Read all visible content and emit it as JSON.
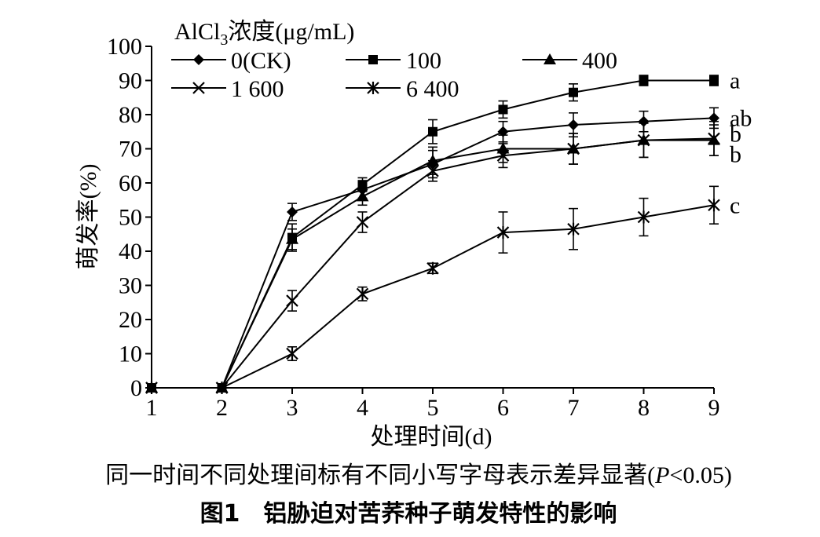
{
  "chart_data": {
    "type": "line",
    "title": "",
    "xlabel": "处理时间(d)",
    "ylabel": "萌发率(%)",
    "x": [
      1,
      2,
      3,
      4,
      5,
      6,
      7,
      8,
      9
    ],
    "xticks": [
      "1",
      "2",
      "3",
      "4",
      "5",
      "6",
      "7",
      "8",
      "9"
    ],
    "xlim": [
      1,
      9
    ],
    "yticks": [
      "0",
      "10",
      "20",
      "30",
      "40",
      "50",
      "60",
      "70",
      "80",
      "90",
      "100"
    ],
    "ylim": [
      0,
      100
    ],
    "grid": false,
    "legend_title": "AlCl3浓度(μg/mL)",
    "legend_title_main": "AlCl",
    "legend_title_sub": "3",
    "legend_title_rest": "浓度(μg/mL)",
    "legend_position": "top-left",
    "series": [
      {
        "name": "0(CK)",
        "marker": "diamond",
        "values": [
          0,
          0,
          51.5,
          58,
          65.5,
          75,
          77,
          78,
          79
        ],
        "errors": [
          0,
          0,
          2.5,
          2.5,
          4,
          3,
          3.5,
          3,
          3
        ],
        "label": "ab"
      },
      {
        "name": "100",
        "marker": "square",
        "values": [
          0,
          0,
          44,
          59.5,
          75,
          81.5,
          86.5,
          90,
          90
        ],
        "errors": [
          0,
          0,
          4,
          2,
          3.5,
          2.5,
          2.5,
          1.5,
          1.5
        ],
        "label": "a"
      },
      {
        "name": "400",
        "marker": "triangle",
        "values": [
          0,
          0,
          43.5,
          56,
          66.5,
          70,
          70,
          72.5,
          72.5
        ],
        "errors": [
          0,
          0,
          3,
          2.5,
          4,
          4,
          4.5,
          5,
          4.5
        ],
        "label": "b"
      },
      {
        "name": "1 600",
        "marker": "x",
        "values": [
          0,
          0,
          25.5,
          48.5,
          63.5,
          68,
          70,
          72.5,
          73
        ],
        "errors": [
          0,
          0,
          3,
          3,
          3,
          3.5,
          4.5,
          5,
          5
        ],
        "label": "b"
      },
      {
        "name": "6 400",
        "marker": "asterisk",
        "values": [
          0,
          0,
          10,
          27.5,
          35,
          45.5,
          46.5,
          50,
          53.5
        ],
        "errors": [
          0,
          0,
          2,
          2,
          1.5,
          6,
          6,
          5.5,
          5.5
        ],
        "label": "c"
      }
    ],
    "note": "同一时间不同处理间标有不同小写字母表示差异显著(P<0.05)",
    "note_prefix": "同一时间不同处理间标有不同小写字母表示差异显著(",
    "note_p": "P",
    "note_suffix": "<0.05)",
    "caption": "图1　铝胁迫对苦荞种子萌发特性的影响"
  }
}
